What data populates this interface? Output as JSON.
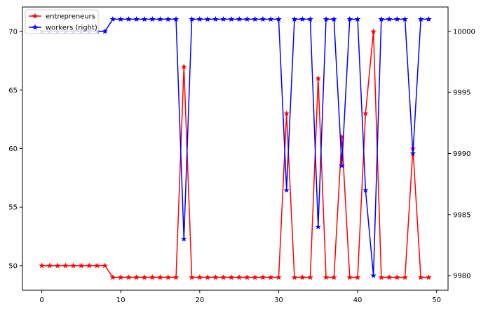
{
  "chart_data": {
    "type": "line",
    "title": "",
    "xlabel": "",
    "ylabel": "",
    "ylabel_right": "",
    "xlim": [
      -2.45,
      51.45
    ],
    "ylim": [
      47.9,
      72.1
    ],
    "ylim_right": [
      9978.8,
      10002.0
    ],
    "x_ticks": [
      0,
      10,
      20,
      30,
      40,
      50
    ],
    "y_ticks": [
      50,
      55,
      60,
      65,
      70
    ],
    "y_ticks_right": [
      9980,
      9985,
      9990,
      9995,
      10000
    ],
    "grid": false,
    "legend_position": "top-left",
    "x": [
      0,
      1,
      2,
      3,
      4,
      5,
      6,
      7,
      8,
      9,
      10,
      11,
      12,
      13,
      14,
      15,
      16,
      17,
      18,
      19,
      20,
      21,
      22,
      23,
      24,
      25,
      26,
      27,
      28,
      29,
      30,
      31,
      32,
      33,
      34,
      35,
      36,
      37,
      38,
      39,
      40,
      41,
      42,
      43,
      44,
      45,
      46,
      47,
      48,
      49
    ],
    "series": [
      {
        "name": "entrepreneurs",
        "axis": "left",
        "color": "#ff0000",
        "marker": "star",
        "values": [
          50,
          50,
          50,
          50,
          50,
          50,
          50,
          50,
          50,
          49,
          49,
          49,
          49,
          49,
          49,
          49,
          49,
          49,
          67,
          49,
          49,
          49,
          49,
          49,
          49,
          49,
          49,
          49,
          49,
          49,
          49,
          63,
          49,
          49,
          49,
          66,
          49,
          49,
          61,
          49,
          49,
          63,
          70,
          49,
          49,
          49,
          49,
          60,
          49,
          49
        ]
      },
      {
        "name": "workers (right)",
        "axis": "right",
        "color": "#0000ff",
        "marker": "star",
        "values": [
          10000,
          10000,
          10000,
          10000,
          10000,
          10000,
          10000,
          10000,
          10000,
          10001,
          10001,
          10001,
          10001,
          10001,
          10001,
          10001,
          10001,
          10001,
          9983,
          10001,
          10001,
          10001,
          10001,
          10001,
          10001,
          10001,
          10001,
          10001,
          10001,
          10001,
          10001,
          9987,
          10001,
          10001,
          10001,
          9984,
          10001,
          10001,
          9989,
          10001,
          10001,
          9987,
          9980,
          10001,
          10001,
          10001,
          10001,
          9990,
          10001,
          10001
        ]
      }
    ]
  }
}
